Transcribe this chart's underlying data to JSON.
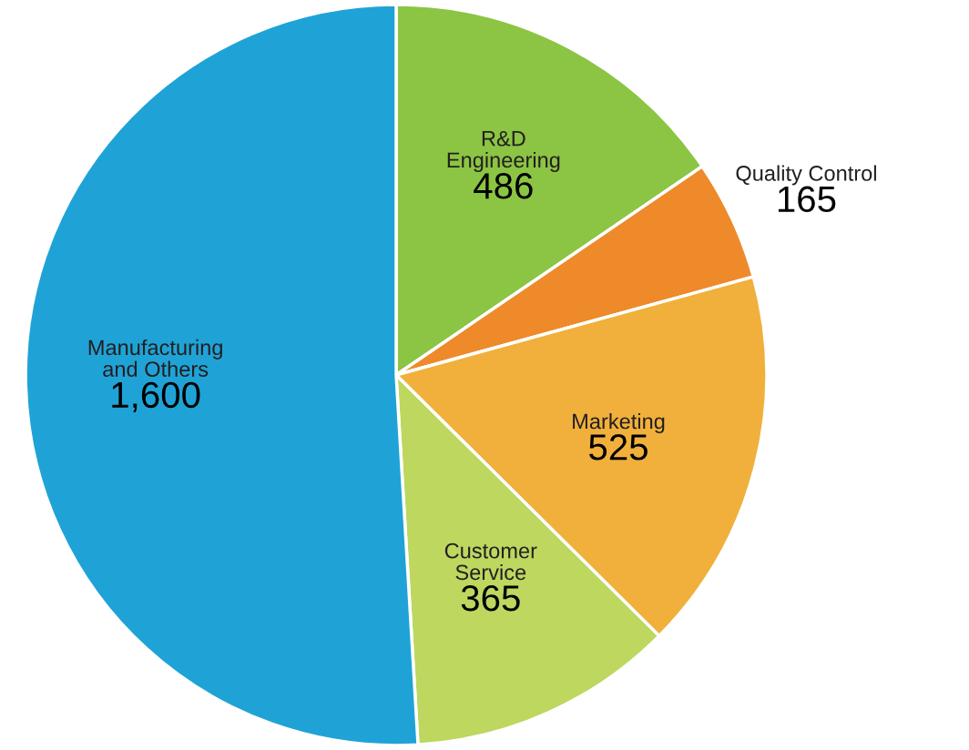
{
  "chart_data": {
    "type": "pie",
    "categories": [
      "R&D\nEngineering",
      "Quality Control",
      "Marketing",
      "Customer\nService",
      "Manufacturing\nand Others"
    ],
    "values": [
      486,
      165,
      525,
      365,
      1600
    ],
    "value_labels": [
      "486",
      "165",
      "525",
      "365",
      "1,600"
    ],
    "colors": [
      "#8cc443",
      "#ee8a2a",
      "#f0b03b",
      "#bdd75f",
      "#1fa3d7"
    ],
    "legend": false
  }
}
